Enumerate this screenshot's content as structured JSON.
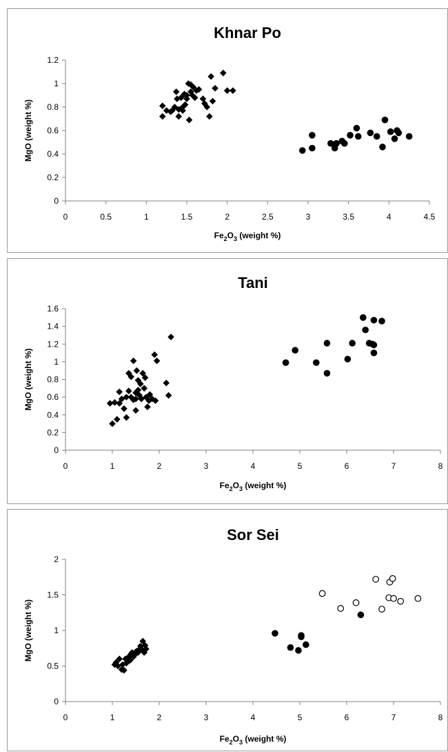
{
  "chart_data": [
    {
      "type": "scatter",
      "title": "Khnar Po",
      "ylabel": "MgO (weight %)",
      "xlabel": {
        "pre": "Fe",
        "sub1": "2",
        "mid": "O",
        "sub2": "3",
        "post": " (weight %)"
      },
      "xlim": [
        0,
        4.5
      ],
      "ylim": [
        0,
        1.2
      ],
      "xticks": [
        "0",
        "0.5",
        "1",
        "1.5",
        "2",
        "2.5",
        "3",
        "3.5",
        "4",
        "4.5"
      ],
      "yticks": [
        "0",
        "0.2",
        "0.4",
        "0.6",
        "0.8",
        "1",
        "1.2"
      ],
      "grid": false,
      "series": [
        {
          "marker": "diamond",
          "points": [
            [
              1.2,
              0.81
            ],
            [
              1.2,
              0.72
            ],
            [
              1.25,
              0.77
            ],
            [
              1.3,
              0.76
            ],
            [
              1.32,
              0.77
            ],
            [
              1.35,
              0.8
            ],
            [
              1.37,
              0.93
            ],
            [
              1.38,
              0.87
            ],
            [
              1.4,
              0.78
            ],
            [
              1.4,
              0.72
            ],
            [
              1.43,
              0.88
            ],
            [
              1.45,
              0.8
            ],
            [
              1.45,
              0.77
            ],
            [
              1.47,
              0.91
            ],
            [
              1.48,
              0.82
            ],
            [
              1.5,
              0.9
            ],
            [
              1.5,
              0.87
            ],
            [
              1.52,
              1.0
            ],
            [
              1.53,
              0.69
            ],
            [
              1.55,
              0.99
            ],
            [
              1.55,
              0.93
            ],
            [
              1.57,
              0.9
            ],
            [
              1.58,
              0.97
            ],
            [
              1.6,
              0.88
            ],
            [
              1.62,
              0.94
            ],
            [
              1.65,
              0.95
            ],
            [
              1.7,
              0.87
            ],
            [
              1.72,
              0.83
            ],
            [
              1.75,
              0.8
            ],
            [
              1.78,
              0.72
            ],
            [
              1.8,
              1.06
            ],
            [
              1.82,
              0.85
            ],
            [
              1.85,
              0.96
            ],
            [
              1.95,
              1.09
            ],
            [
              2.0,
              0.94
            ],
            [
              2.07,
              0.94
            ]
          ]
        },
        {
          "marker": "circle",
          "points": [
            [
              2.93,
              0.43
            ],
            [
              3.05,
              0.56
            ],
            [
              3.05,
              0.45
            ],
            [
              3.28,
              0.49
            ],
            [
              3.33,
              0.45
            ],
            [
              3.35,
              0.49
            ],
            [
              3.42,
              0.51
            ],
            [
              3.45,
              0.49
            ],
            [
              3.52,
              0.56
            ],
            [
              3.6,
              0.62
            ],
            [
              3.62,
              0.55
            ],
            [
              3.77,
              0.58
            ],
            [
              3.85,
              0.55
            ],
            [
              3.92,
              0.46
            ],
            [
              3.95,
              0.69
            ],
            [
              4.02,
              0.59
            ],
            [
              4.07,
              0.53
            ],
            [
              4.1,
              0.6
            ],
            [
              4.12,
              0.58
            ],
            [
              4.25,
              0.55
            ]
          ]
        }
      ]
    },
    {
      "type": "scatter",
      "title": "Tani",
      "ylabel": "MgO (weight  %)",
      "xlabel": {
        "pre": "Fe",
        "sub1": "2",
        "mid": "O",
        "sub2": "3",
        "post": " (weight  %)"
      },
      "xlim": [
        0,
        8
      ],
      "ylim": [
        0,
        1.6
      ],
      "xticks": [
        "0",
        "1",
        "2",
        "3",
        "4",
        "5",
        "6",
        "7",
        "8"
      ],
      "yticks": [
        "0",
        "0.2",
        "0.4",
        "0.6",
        "0.8",
        "1",
        "1.2",
        "1.4",
        "1.6"
      ],
      "grid": false,
      "series": [
        {
          "marker": "diamond",
          "points": [
            [
              0.95,
              0.53
            ],
            [
              1.0,
              0.3
            ],
            [
              1.05,
              0.54
            ],
            [
              1.1,
              0.35
            ],
            [
              1.15,
              0.53
            ],
            [
              1.15,
              0.66
            ],
            [
              1.2,
              0.58
            ],
            [
              1.25,
              0.47
            ],
            [
              1.3,
              0.6
            ],
            [
              1.3,
              0.37
            ],
            [
              1.35,
              0.87
            ],
            [
              1.35,
              0.67
            ],
            [
              1.4,
              0.83
            ],
            [
              1.4,
              0.6
            ],
            [
              1.45,
              0.57
            ],
            [
              1.45,
              1.01
            ],
            [
              1.5,
              0.45
            ],
            [
              1.5,
              0.65
            ],
            [
              1.5,
              0.58
            ],
            [
              1.52,
              0.9
            ],
            [
              1.55,
              0.79
            ],
            [
              1.55,
              0.68
            ],
            [
              1.58,
              0.62
            ],
            [
              1.6,
              0.75
            ],
            [
              1.62,
              0.58
            ],
            [
              1.65,
              0.87
            ],
            [
              1.68,
              0.7
            ],
            [
              1.7,
              0.82
            ],
            [
              1.72,
              0.6
            ],
            [
              1.75,
              0.49
            ],
            [
              1.78,
              0.56
            ],
            [
              1.8,
              0.63
            ],
            [
              1.85,
              0.58
            ],
            [
              1.9,
              1.08
            ],
            [
              1.92,
              0.56
            ],
            [
              1.95,
              1.01
            ],
            [
              2.15,
              0.76
            ],
            [
              2.2,
              0.62
            ],
            [
              2.25,
              1.28
            ]
          ]
        },
        {
          "marker": "circle",
          "points": [
            [
              4.7,
              0.99
            ],
            [
              4.9,
              1.13
            ],
            [
              5.35,
              0.99
            ],
            [
              5.58,
              1.21
            ],
            [
              5.58,
              0.87
            ],
            [
              6.02,
              1.03
            ],
            [
              6.12,
              1.21
            ],
            [
              6.35,
              1.5
            ],
            [
              6.4,
              1.36
            ],
            [
              6.48,
              1.21
            ],
            [
              6.55,
              1.2
            ],
            [
              6.58,
              1.47
            ],
            [
              6.58,
              1.19
            ],
            [
              6.58,
              1.1
            ],
            [
              6.75,
              1.46
            ]
          ]
        }
      ]
    },
    {
      "type": "scatter",
      "title": "Sor Sei",
      "ylabel": "MgO (weight  %)",
      "xlabel": {
        "pre": "Fe",
        "sub1": "2",
        "mid": "O",
        "sub2": "3",
        "post": " (weight  %)"
      },
      "xlim": [
        0,
        8
      ],
      "ylim": [
        0,
        2
      ],
      "xticks": [
        "0",
        "1",
        "2",
        "3",
        "4",
        "5",
        "6",
        "7",
        "8"
      ],
      "yticks": [
        "0",
        "0.5",
        "1",
        "1.5",
        "2"
      ],
      "grid": false,
      "series": [
        {
          "marker": "diamond",
          "points": [
            [
              1.05,
              0.52
            ],
            [
              1.08,
              0.55
            ],
            [
              1.12,
              0.5
            ],
            [
              1.15,
              0.6
            ],
            [
              1.2,
              0.45
            ],
            [
              1.22,
              0.52
            ],
            [
              1.25,
              0.44
            ],
            [
              1.28,
              0.6
            ],
            [
              1.3,
              0.54
            ],
            [
              1.35,
              0.63
            ],
            [
              1.38,
              0.58
            ],
            [
              1.4,
              0.67
            ],
            [
              1.42,
              0.69
            ],
            [
              1.45,
              0.63
            ],
            [
              1.48,
              0.66
            ],
            [
              1.5,
              0.7
            ],
            [
              1.52,
              0.71
            ],
            [
              1.55,
              0.69
            ],
            [
              1.57,
              0.73
            ],
            [
              1.6,
              0.78
            ],
            [
              1.62,
              0.74
            ],
            [
              1.65,
              0.85
            ],
            [
              1.68,
              0.69
            ],
            [
              1.7,
              0.79
            ],
            [
              1.72,
              0.74
            ]
          ]
        },
        {
          "marker": "circle",
          "points": [
            [
              4.47,
              0.96
            ],
            [
              4.8,
              0.76
            ],
            [
              4.97,
              0.72
            ],
            [
              5.03,
              0.93
            ],
            [
              5.03,
              0.91
            ],
            [
              5.13,
              0.8
            ],
            [
              6.3,
              1.22
            ]
          ]
        },
        {
          "marker": "open-circle",
          "points": [
            [
              5.48,
              1.52
            ],
            [
              5.87,
              1.31
            ],
            [
              6.2,
              1.39
            ],
            [
              6.62,
              1.72
            ],
            [
              6.75,
              1.3
            ],
            [
              6.9,
              1.46
            ],
            [
              6.92,
              1.68
            ],
            [
              6.98,
              1.73
            ],
            [
              7.0,
              1.45
            ],
            [
              7.15,
              1.41
            ],
            [
              7.52,
              1.45
            ]
          ]
        }
      ]
    }
  ]
}
